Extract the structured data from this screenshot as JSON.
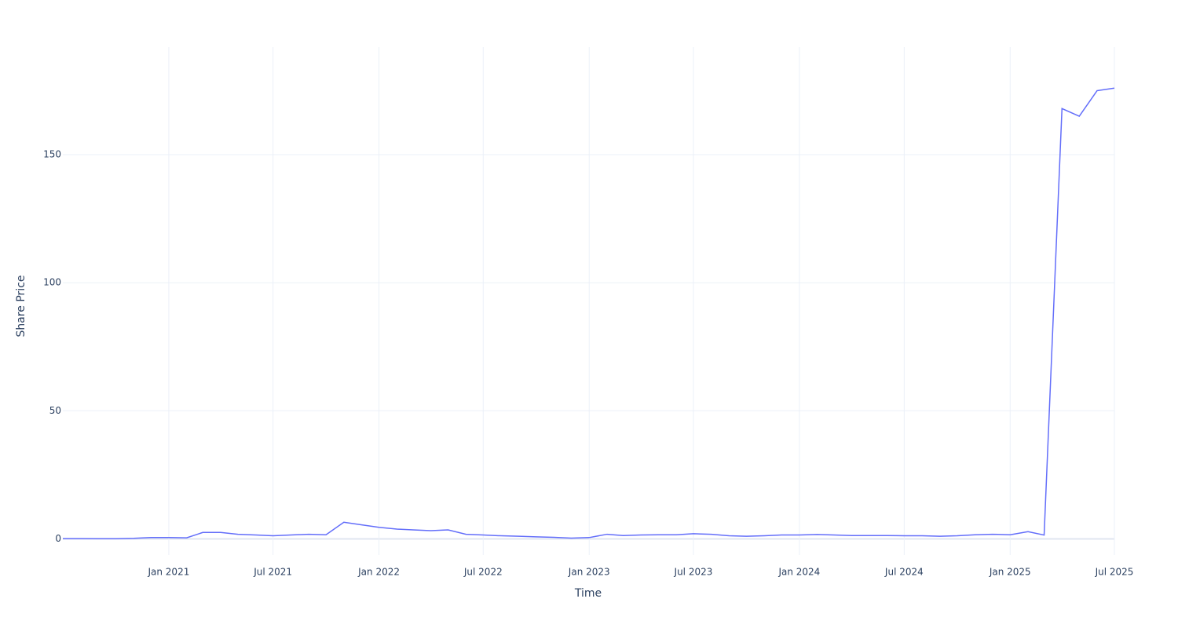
{
  "chart_data": {
    "type": "line",
    "xlabel": "Time",
    "ylabel": "Share Price",
    "x": [
      "2020-07",
      "2020-08",
      "2020-09",
      "2020-10",
      "2020-11",
      "2020-12",
      "2021-01",
      "2021-02",
      "2021-03",
      "2021-04",
      "2021-05",
      "2021-06",
      "2021-07",
      "2021-08",
      "2021-09",
      "2021-10",
      "2021-11",
      "2021-12",
      "2022-01",
      "2022-02",
      "2022-03",
      "2022-04",
      "2022-05",
      "2022-06",
      "2022-07",
      "2022-08",
      "2022-09",
      "2022-10",
      "2022-11",
      "2022-12",
      "2023-01",
      "2023-02",
      "2023-03",
      "2023-04",
      "2023-05",
      "2023-06",
      "2023-07",
      "2023-08",
      "2023-09",
      "2023-10",
      "2023-11",
      "2023-12",
      "2024-01",
      "2024-02",
      "2024-03",
      "2024-04",
      "2024-05",
      "2024-06",
      "2024-07",
      "2024-08",
      "2024-09",
      "2024-10",
      "2024-11",
      "2024-12",
      "2025-01",
      "2025-02",
      "2025-03",
      "2025-04",
      "2025-05",
      "2025-06",
      "2025-07"
    ],
    "series": [
      {
        "name": "Share Price",
        "color": "#636efa",
        "values": [
          0.1,
          0.1,
          0.05,
          0.05,
          0.2,
          0.5,
          0.5,
          0.4,
          2.5,
          2.5,
          1.8,
          1.5,
          1.2,
          1.5,
          1.8,
          1.6,
          6.5,
          5.5,
          4.5,
          3.8,
          3.5,
          3.2,
          3.5,
          1.8,
          1.5,
          1.2,
          1.0,
          0.8,
          0.6,
          0.3,
          0.5,
          1.8,
          1.3,
          1.5,
          1.6,
          1.6,
          2.0,
          1.8,
          1.2,
          1.0,
          1.2,
          1.5,
          1.5,
          1.7,
          1.5,
          1.3,
          1.3,
          1.3,
          1.2,
          1.2,
          1.0,
          1.2,
          1.6,
          1.8,
          1.6,
          2.8,
          1.5,
          168,
          165,
          175,
          176
        ]
      }
    ],
    "xlim": [
      "2020-07",
      "2025-07"
    ],
    "xticks": [
      {
        "value": "2021-01",
        "label": "Jan 2021"
      },
      {
        "value": "2021-07",
        "label": "Jul 2021"
      },
      {
        "value": "2022-01",
        "label": "Jan 2022"
      },
      {
        "value": "2022-07",
        "label": "Jul 2022"
      },
      {
        "value": "2023-01",
        "label": "Jan 2023"
      },
      {
        "value": "2023-07",
        "label": "Jul 2023"
      },
      {
        "value": "2024-01",
        "label": "Jan 2024"
      },
      {
        "value": "2024-07",
        "label": "Jul 2024"
      },
      {
        "value": "2025-01",
        "label": "Jan 2025"
      },
      {
        "value": "2025-07",
        "label": "Jul 2025"
      }
    ],
    "ylim": [
      -6.3,
      192
    ],
    "yticks": [
      0,
      50,
      100,
      150
    ],
    "grid": true
  }
}
